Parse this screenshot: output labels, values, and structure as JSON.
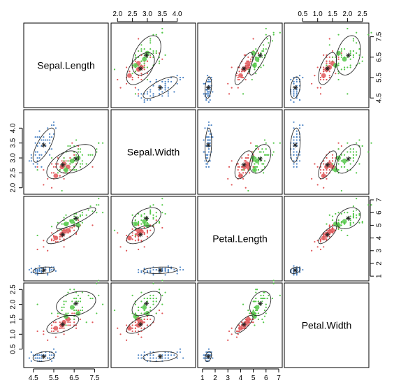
{
  "chart_data": {
    "type": "scatter",
    "layout": "scatterplot-matrix",
    "variables": [
      "Sepal.Length",
      "Sepal.Width",
      "Petal.Length",
      "Petal.Width"
    ],
    "ranges": [
      [
        4.2,
        8.0
      ],
      [
        1.9,
        4.5
      ],
      [
        0.9,
        7.0
      ],
      [
        0.0,
        2.6
      ]
    ],
    "ticks": [
      [
        4.5,
        5.5,
        6.5,
        7.5
      ],
      [
        2.0,
        2.5,
        3.0,
        3.5,
        4.0
      ],
      [
        1,
        2,
        3,
        4,
        5,
        6,
        7
      ],
      [
        0.5,
        1.0,
        1.5,
        2.0,
        2.5
      ]
    ],
    "tick_labels": [
      [
        "4.5",
        "5.5",
        "6.5",
        "7.5"
      ],
      [
        "2.0",
        "2.5",
        "3.0",
        "3.5",
        "4.0"
      ],
      [
        "1",
        "2",
        "3",
        "4",
        "5",
        "6",
        "7"
      ],
      [
        "0.5",
        "1.0",
        "1.5",
        "2.0",
        "2.5"
      ]
    ],
    "bottom_axis_ticks": [
      [
        "4.5",
        "5.5",
        "6.5",
        "7.5"
      ],
      [],
      [
        "1",
        "2",
        "3",
        "4",
        "5",
        "6",
        "7"
      ],
      []
    ],
    "top_axis_ticks": [
      [],
      [
        "2.0",
        "2.5",
        "3.0",
        "3.5",
        "4.0"
      ],
      [],
      [
        "0.5",
        "1.0",
        "1.5",
        "2.0",
        "2.5"
      ]
    ],
    "left_axis_ticks": [
      [],
      [
        "2.0",
        "2.5",
        "3.0",
        "3.5",
        "4.0"
      ],
      [],
      [
        "0.5",
        "1.0",
        "1.5",
        "2.0",
        "2.5"
      ]
    ],
    "right_axis_ticks": [
      [
        "4.5",
        "5.5",
        "6.5",
        "7.5"
      ],
      [],
      [
        "1",
        "2",
        "3",
        "4",
        "5",
        "6",
        "7"
      ],
      []
    ],
    "groups": [
      {
        "color": "#4f86c6",
        "centroid": [
          5.01,
          3.43,
          1.46,
          0.25
        ],
        "sd": [
          0.35,
          0.38,
          0.17,
          0.11
        ],
        "correlation": [
          [
            1,
            0.74,
            0.27,
            0.28
          ],
          [
            0.74,
            1,
            0.18,
            0.23
          ],
          [
            0.27,
            0.18,
            1,
            0.33
          ],
          [
            0.28,
            0.23,
            0.33,
            1
          ]
        ]
      },
      {
        "color": "#e15759",
        "centroid": [
          5.94,
          2.77,
          4.26,
          1.33
        ],
        "sd": [
          0.52,
          0.31,
          0.47,
          0.2
        ],
        "correlation": [
          [
            1,
            0.53,
            0.75,
            0.55
          ],
          [
            0.53,
            1,
            0.56,
            0.66
          ],
          [
            0.75,
            0.56,
            1,
            0.79
          ],
          [
            0.55,
            0.66,
            0.79,
            1
          ]
        ]
      },
      {
        "color": "#55c84a",
        "centroid": [
          6.59,
          2.97,
          5.55,
          2.03
        ],
        "sd": [
          0.64,
          0.32,
          0.55,
          0.27
        ],
        "correlation": [
          [
            1,
            0.46,
            0.86,
            0.28
          ],
          [
            0.46,
            1,
            0.4,
            0.54
          ],
          [
            0.86,
            0.4,
            1,
            0.32
          ],
          [
            0.28,
            0.54,
            0.32,
            1
          ]
        ]
      }
    ],
    "large_points": [
      {
        "group": 1,
        "values": [
          6.0,
          2.8,
          4.5,
          1.4
        ]
      },
      {
        "group": 1,
        "values": [
          5.6,
          2.4,
          4.0,
          1.2
        ]
      },
      {
        "group": 1,
        "values": [
          5.9,
          2.7,
          4.3,
          1.3
        ]
      },
      {
        "group": 1,
        "values": [
          6.2,
          2.7,
          4.6,
          1.5
        ]
      },
      {
        "group": 2,
        "values": [
          6.7,
          3.0,
          5.0,
          1.7
        ]
      },
      {
        "group": 2,
        "values": [
          6.1,
          2.6,
          5.1,
          1.6
        ]
      },
      {
        "group": 2,
        "values": [
          6.4,
          2.9,
          5.3,
          1.9
        ]
      }
    ],
    "ellipse_level": 0.68,
    "grid": false,
    "legend": "none"
  }
}
